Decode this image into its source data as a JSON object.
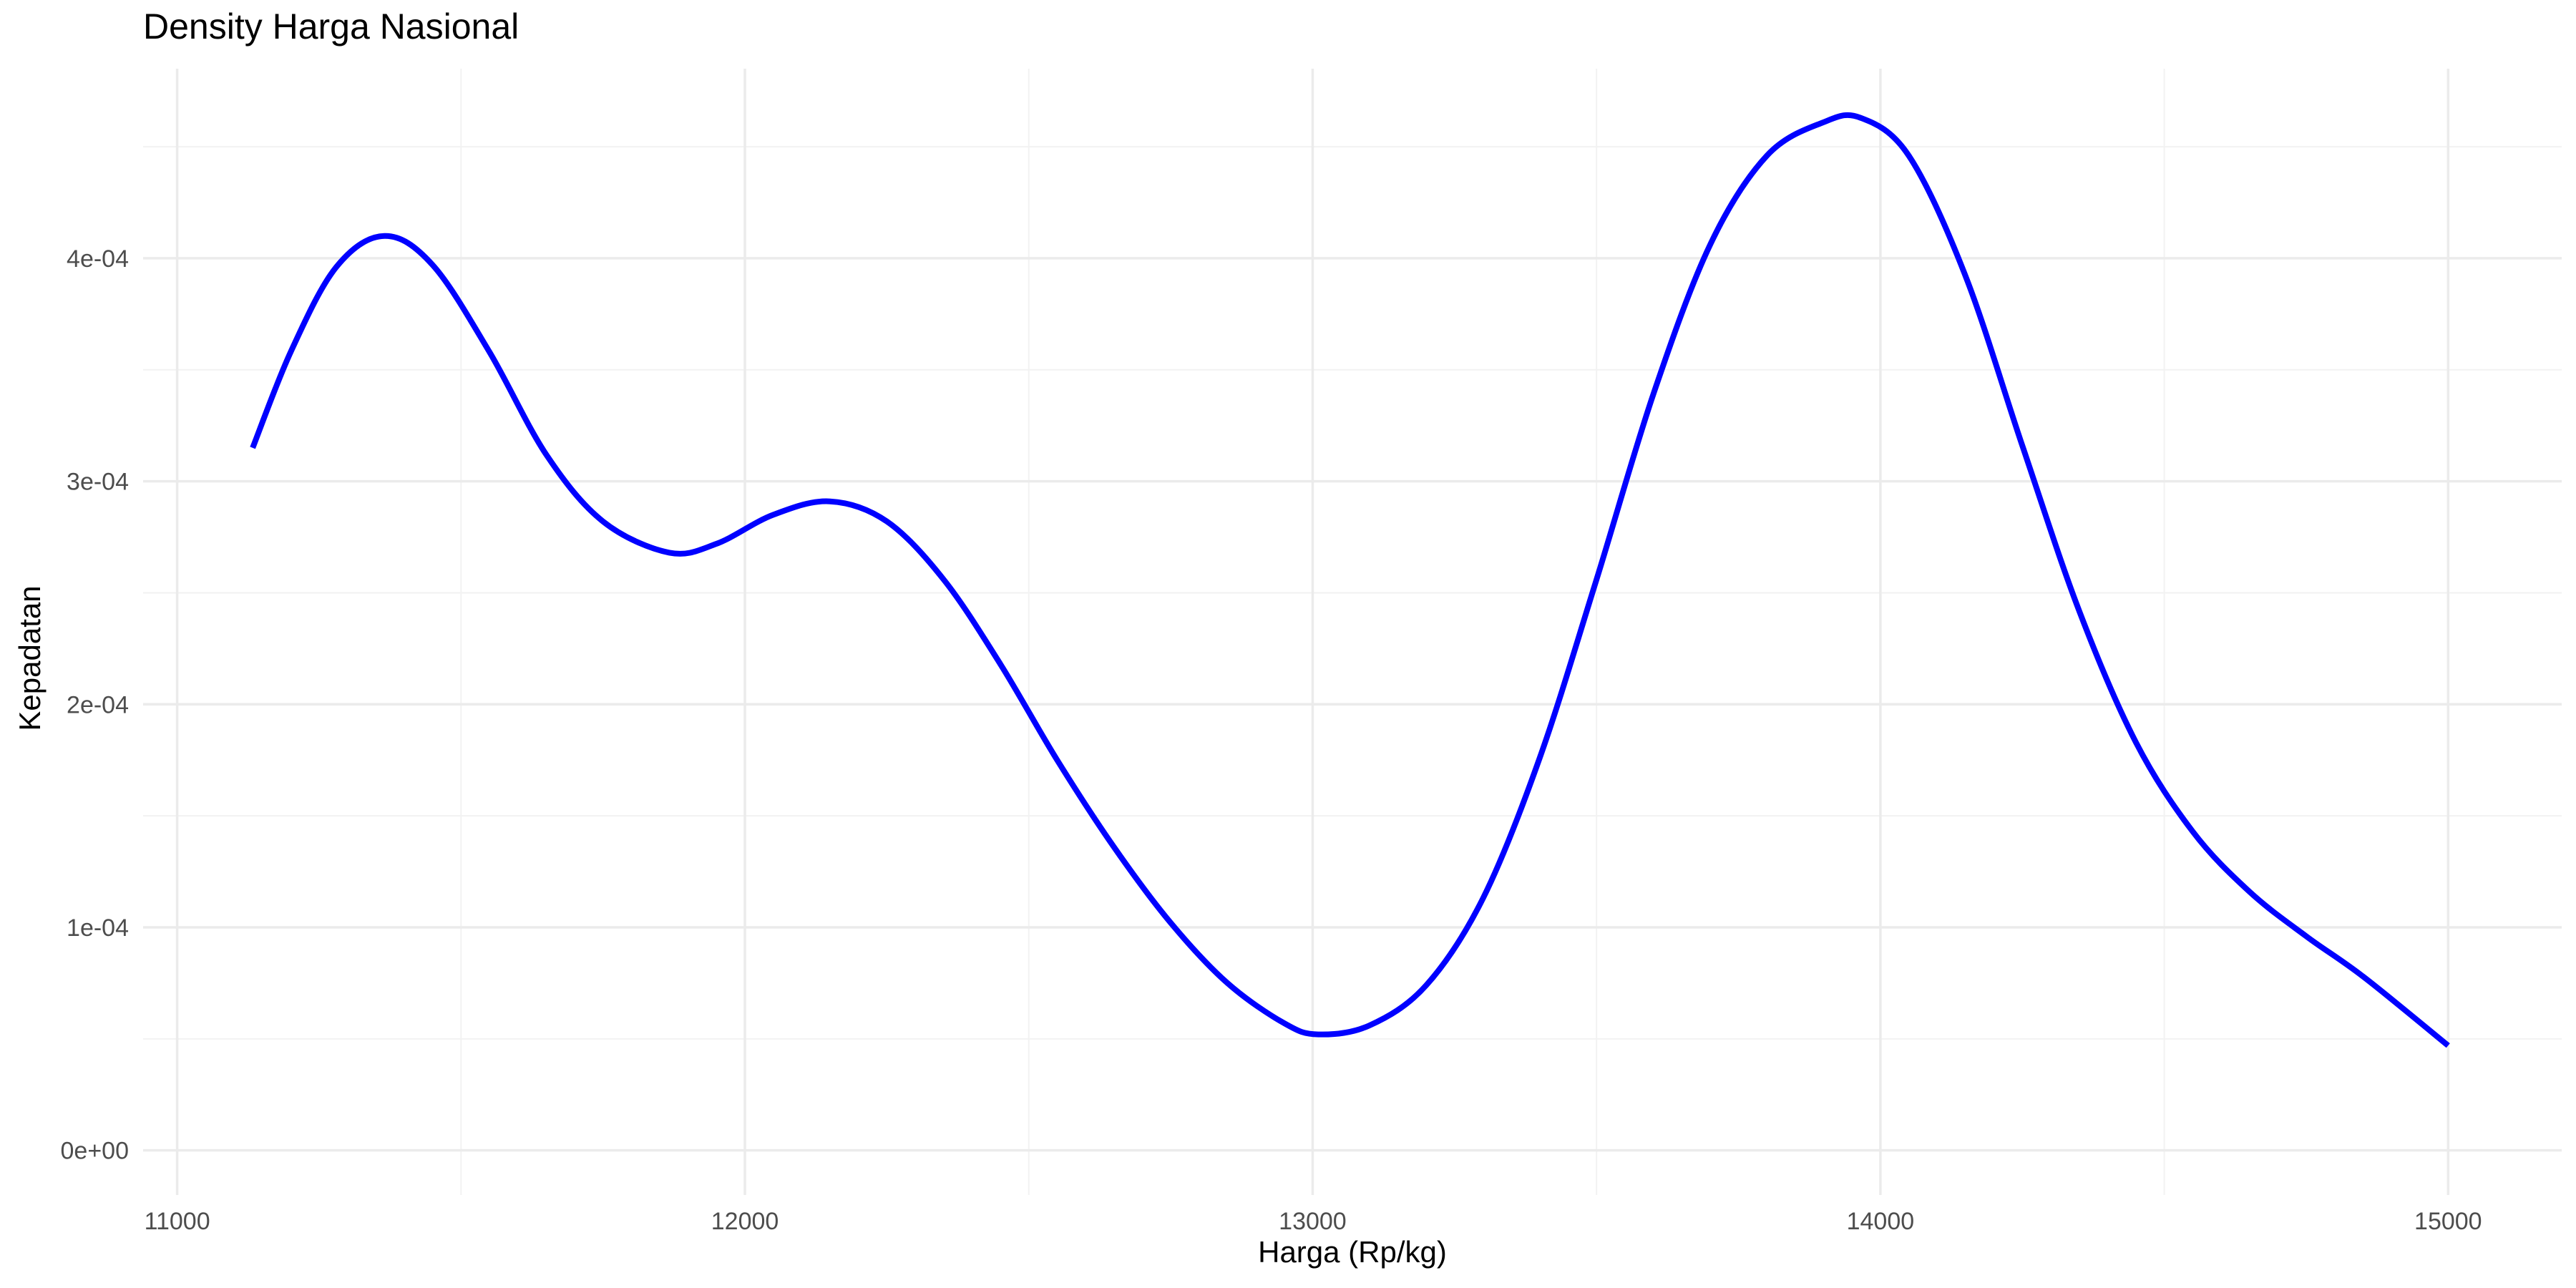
{
  "chart_data": {
    "type": "line",
    "title": "Density Harga Nasional",
    "xlabel": "Harga (Rp/kg)",
    "ylabel": "Kepadatan",
    "xlim": [
      10940,
      15200
    ],
    "ylim": [
      -2e-05,
      0.000485
    ],
    "x_ticks": [
      11000,
      12000,
      13000,
      14000,
      15000
    ],
    "x_tick_labels": [
      "11000",
      "12000",
      "13000",
      "14000",
      "15000"
    ],
    "x_minor_ticks": [
      11500,
      12500,
      13500,
      14500
    ],
    "y_ticks": [
      0,
      0.0001,
      0.0002,
      0.0003,
      0.0004
    ],
    "y_tick_labels": [
      "0e+00",
      "1e-04",
      "2e-04",
      "3e-04",
      "4e-04"
    ],
    "y_minor_ticks": [
      5e-05,
      0.00015,
      0.00025,
      0.00035,
      0.00045
    ],
    "grid": true,
    "series": [
      {
        "color": "#0000ff",
        "x": [
          11133,
          11200,
          11280,
          11365,
          11450,
          11550,
          11650,
          11750,
          11867,
          11950,
          12050,
          12150,
          12250,
          12350,
          12450,
          12550,
          12650,
          12750,
          12850,
          12950,
          13010,
          13100,
          13200,
          13300,
          13400,
          13500,
          13600,
          13700,
          13800,
          13900,
          13965,
          14050,
          14150,
          14250,
          14350,
          14450,
          14550,
          14650,
          14750,
          14850,
          15000
        ],
        "y": [
          0.000315,
          0.000358,
          0.000396,
          0.00041,
          0.000397,
          0.000358,
          0.000312,
          0.000282,
          0.000268,
          0.000272,
          0.000285,
          0.000291,
          0.000282,
          0.000256,
          0.000218,
          0.000175,
          0.000136,
          0.000102,
          7.5e-05,
          5.7e-05,
          5.2e-05,
          5.6e-05,
          7.4e-05,
          0.000113,
          0.000176,
          0.000256,
          0.000339,
          0.000406,
          0.000446,
          0.000461,
          0.000463,
          0.000446,
          0.000392,
          0.000316,
          0.000242,
          0.000183,
          0.000143,
          0.000116,
          9.6e-05,
          7.8e-05,
          4.7e-05
        ]
      }
    ]
  }
}
